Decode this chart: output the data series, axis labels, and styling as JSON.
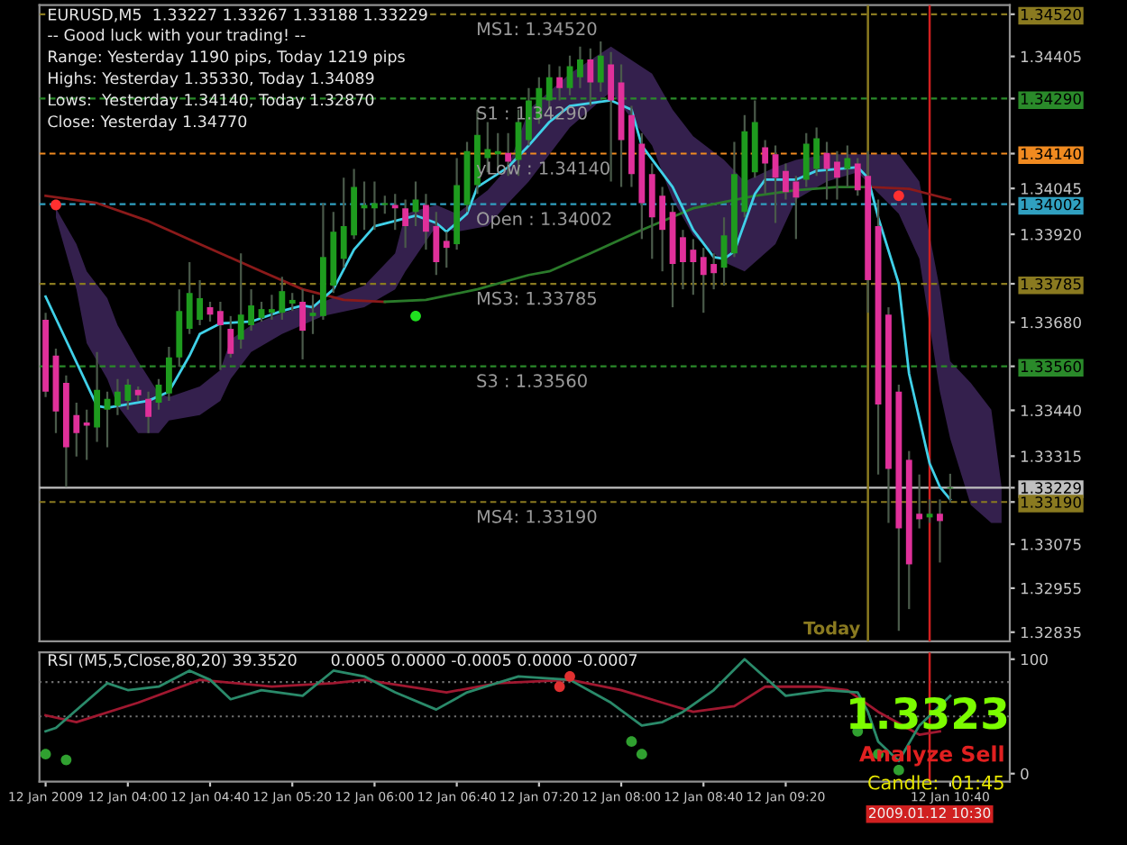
{
  "chart_data": [
    {
      "type": "candlestick",
      "title": "EURUSD,M5  1.33227 1.33267 1.33188 1.33229",
      "annotations": [
        "-- Good luck with your trading! --",
        "Range: Yesterday 1190 pips, Today 1219 pips",
        "Highs: Yesterday 1.35330, Today 1.34089",
        "Lows:  Yesterday 1.34140, Today 1.32870",
        "Close: Yesterday 1.34770"
      ],
      "x": [
        "2009-01-12T03:20",
        "2009-01-12T03:25",
        "2009-01-12T03:30",
        "2009-01-12T03:35",
        "2009-01-12T03:40",
        "2009-01-12T03:45",
        "2009-01-12T03:50",
        "2009-01-12T03:55",
        "2009-01-12T04:00",
        "2009-01-12T04:05",
        "2009-01-12T04:10",
        "2009-01-12T04:15",
        "2009-01-12T04:20",
        "2009-01-12T04:25",
        "2009-01-12T04:30",
        "2009-01-12T04:35",
        "2009-01-12T04:40",
        "2009-01-12T04:45",
        "2009-01-12T04:50",
        "2009-01-12T04:55",
        "2009-01-12T05:00",
        "2009-01-12T05:05",
        "2009-01-12T05:10",
        "2009-01-12T05:15",
        "2009-01-12T05:20",
        "2009-01-12T05:25",
        "2009-01-12T05:30",
        "2009-01-12T05:35",
        "2009-01-12T05:40",
        "2009-01-12T05:45",
        "2009-01-12T05:50",
        "2009-01-12T05:55",
        "2009-01-12T06:00",
        "2009-01-12T06:05",
        "2009-01-12T06:10",
        "2009-01-12T06:15",
        "2009-01-12T06:20",
        "2009-01-12T06:25",
        "2009-01-12T06:30",
        "2009-01-12T06:35",
        "2009-01-12T06:40",
        "2009-01-12T06:45",
        "2009-01-12T06:50",
        "2009-01-12T06:55",
        "2009-01-12T07:00",
        "2009-01-12T07:05",
        "2009-01-12T07:10",
        "2009-01-12T07:15",
        "2009-01-12T07:20",
        "2009-01-12T07:25",
        "2009-01-12T07:30",
        "2009-01-12T07:35",
        "2009-01-12T07:40",
        "2009-01-12T07:45",
        "2009-01-12T07:50",
        "2009-01-12T07:55",
        "2009-01-12T08:00",
        "2009-01-12T08:05",
        "2009-01-12T08:10",
        "2009-01-12T08:15",
        "2009-01-12T08:20",
        "2009-01-12T08:25",
        "2009-01-12T08:30",
        "2009-01-12T08:35",
        "2009-01-12T08:40",
        "2009-01-12T08:45",
        "2009-01-12T08:50",
        "2009-01-12T08:55",
        "2009-01-12T09:00",
        "2009-01-12T09:05",
        "2009-01-12T09:10",
        "2009-01-12T09:15",
        "2009-01-12T09:20",
        "2009-01-12T09:25",
        "2009-01-12T09:30",
        "2009-01-12T09:35",
        "2009-01-12T09:40",
        "2009-01-12T09:45",
        "2009-01-12T09:50",
        "2009-01-12T09:55",
        "2009-01-12T10:00",
        "2009-01-12T10:05",
        "2009-01-12T10:10",
        "2009-01-12T10:15",
        "2009-01-12T10:20",
        "2009-01-12T10:25",
        "2009-01-12T10:30",
        "2009-01-12T10:35",
        "2009-01-12T10:40"
      ],
      "ohlc": [
        [
          1.33687,
          1.33706,
          1.33476,
          1.33491
        ],
        [
          1.33589,
          1.33608,
          1.33378,
          1.33437
        ],
        [
          1.33515,
          1.33535,
          1.33231,
          1.33339
        ],
        [
          1.33427,
          1.33461,
          1.33314,
          1.33378
        ],
        [
          1.33407,
          1.33442,
          1.33305,
          1.33398
        ],
        [
          1.33393,
          1.33599,
          1.33354,
          1.33496
        ],
        [
          1.33442,
          1.33491,
          1.33339,
          1.33471
        ],
        [
          1.33452,
          1.33525,
          1.33427,
          1.33491
        ],
        [
          1.33466,
          1.33525,
          1.33442,
          1.3351
        ],
        [
          1.33496,
          1.33505,
          1.33466,
          1.33481
        ],
        [
          1.33471,
          1.33491,
          1.33378,
          1.33422
        ],
        [
          1.33461,
          1.33525,
          1.33442,
          1.3351
        ],
        [
          1.33486,
          1.33613,
          1.33466,
          1.33584
        ],
        [
          1.33584,
          1.3377,
          1.33559,
          1.33711
        ],
        [
          1.33662,
          1.33844,
          1.33648,
          1.3376
        ],
        [
          1.33687,
          1.33795,
          1.33672,
          1.33746
        ],
        [
          1.33721,
          1.33736,
          1.33682,
          1.33701
        ],
        [
          1.33711,
          1.33736,
          1.3355,
          1.33672
        ],
        [
          1.33662,
          1.33697,
          1.33584,
          1.33594
        ],
        [
          1.33633,
          1.33868,
          1.33608,
          1.33701
        ],
        [
          1.33672,
          1.3377,
          1.33657,
          1.33726
        ],
        [
          1.33692,
          1.33736,
          1.33682,
          1.33716
        ],
        [
          1.33706,
          1.33755,
          1.33687,
          1.33716
        ],
        [
          1.33706,
          1.33804,
          1.33687,
          1.33765
        ],
        [
          1.33731,
          1.3376,
          1.33711,
          1.33741
        ],
        [
          1.33736,
          1.3377,
          1.33579,
          1.33657
        ],
        [
          1.33697,
          1.33755,
          1.33648,
          1.33706
        ],
        [
          1.33697,
          1.34005,
          1.33687,
          1.33858
        ],
        [
          1.3378,
          1.33981,
          1.3376,
          1.33927
        ],
        [
          1.33853,
          1.34074,
          1.33829,
          1.33942
        ],
        [
          1.33917,
          1.34098,
          1.33907,
          1.34049
        ],
        [
          1.33991,
          1.34064,
          1.33932,
          1.34
        ],
        [
          1.33991,
          1.34064,
          1.33932,
          1.34005
        ],
        [
          1.34,
          1.34025,
          1.33976,
          1.34005
        ],
        [
          1.34,
          1.3403,
          1.33932,
          1.33991
        ],
        [
          1.33991,
          1.34015,
          1.33883,
          1.33942
        ],
        [
          1.33981,
          1.34064,
          1.33942,
          1.34015
        ],
        [
          1.34,
          1.3403,
          1.33878,
          1.33927
        ],
        [
          1.33942,
          1.33981,
          1.33809,
          1.33844
        ],
        [
          1.33902,
          1.33927,
          1.33829,
          1.33883
        ],
        [
          1.33893,
          1.34128,
          1.33878,
          1.34054
        ],
        [
          1.34,
          1.34172,
          1.33981,
          1.34147
        ],
        [
          1.34054,
          1.3426,
          1.3403,
          1.34191
        ],
        [
          1.34128,
          1.34226,
          1.34089,
          1.34152
        ],
        [
          1.34138,
          1.34196,
          1.34098,
          1.34147
        ],
        [
          1.34142,
          1.34196,
          1.34079,
          1.34118
        ],
        [
          1.34123,
          1.3426,
          1.34079,
          1.34226
        ],
        [
          1.34177,
          1.34319,
          1.34162,
          1.34285
        ],
        [
          1.34236,
          1.34348,
          1.34221,
          1.34319
        ],
        [
          1.34285,
          1.34383,
          1.3426,
          1.34348
        ],
        [
          1.34348,
          1.34378,
          1.34285,
          1.34319
        ],
        [
          1.34319,
          1.34407,
          1.34299,
          1.34378
        ],
        [
          1.34348,
          1.34432,
          1.34319,
          1.34397
        ],
        [
          1.34397,
          1.34427,
          1.3427,
          1.34334
        ],
        [
          1.34334,
          1.34446,
          1.34309,
          1.34407
        ],
        [
          1.34383,
          1.34417,
          1.34064,
          1.34285
        ],
        [
          1.34334,
          1.34383,
          1.34049,
          1.34177
        ],
        [
          1.34245,
          1.3427,
          1.34049,
          1.34084
        ],
        [
          1.34167,
          1.34196,
          1.33907,
          1.34005
        ],
        [
          1.34084,
          1.34113,
          1.33853,
          1.33966
        ],
        [
          1.34025,
          1.34049,
          1.33819,
          1.33932
        ],
        [
          1.33981,
          1.34,
          1.33721,
          1.33839
        ],
        [
          1.33912,
          1.33932,
          1.3377,
          1.33844
        ],
        [
          1.33878,
          1.33907,
          1.33755,
          1.33844
        ],
        [
          1.33858,
          1.33883,
          1.33706,
          1.33809
        ],
        [
          1.33839,
          1.33868,
          1.3377,
          1.33814
        ],
        [
          1.33829,
          1.33966,
          1.3378,
          1.33917
        ],
        [
          1.33868,
          1.34172,
          1.33858,
          1.34084
        ],
        [
          1.33981,
          1.34245,
          1.33966,
          1.34201
        ],
        [
          1.34089,
          1.34285,
          1.34074,
          1.34226
        ],
        [
          1.34157,
          1.34177,
          1.3403,
          1.34113
        ],
        [
          1.34138,
          1.34162,
          1.33951,
          1.34074
        ],
        [
          1.34093,
          1.34113,
          1.34015,
          1.34035
        ],
        [
          1.34064,
          1.34079,
          1.33907,
          1.3402
        ],
        [
          1.34069,
          1.34196,
          1.34049,
          1.34167
        ],
        [
          1.34098,
          1.34211,
          1.34079,
          1.34182
        ],
        [
          1.34142,
          1.34172,
          1.34015,
          1.34098
        ],
        [
          1.34118,
          1.34147,
          1.34015,
          1.34074
        ],
        [
          1.34098,
          1.34162,
          1.34049,
          1.34128
        ],
        [
          1.34113,
          1.34128,
          1.34025,
          1.3404
        ],
        [
          1.34079,
          1.34147,
          1.33706,
          1.33795
        ],
        [
          1.33942,
          1.34015,
          1.33265,
          1.33456
        ],
        [
          1.33701,
          1.33721,
          1.33133,
          1.3328
        ],
        [
          1.33491,
          1.3351,
          1.32839,
          1.33118
        ],
        [
          1.33305,
          1.33329,
          1.32898,
          1.3302
        ],
        [
          1.33158,
          1.33265,
          1.33118,
          1.33143
        ],
        [
          1.33148,
          1.33197,
          1.33133,
          1.33158
        ],
        [
          1.33158,
          1.33197,
          1.33025,
          1.33138
        ],
        [
          1.33227,
          1.33267,
          1.33188,
          1.33229
        ]
      ],
      "colors": [
        "#e0309a",
        "#e0309a",
        "#e0309a",
        "#e0309a",
        "#e0309a",
        "#1e9b1e",
        "#1e9b1e",
        "#1e9b1e",
        "#1e9b1e",
        "#e0309a",
        "#e0309a",
        "#1e9b1e",
        "#1e9b1e",
        "#1e9b1e",
        "#1e9b1e",
        "#1e9b1e",
        "#e0309a",
        "#e0309a",
        "#e0309a",
        "#1e9b1e",
        "#1e9b1e",
        "#1e9b1e",
        "#1e9b1e",
        "#1e9b1e",
        "#1e9b1e",
        "#e0309a",
        "#1e9b1e",
        "#1e9b1e",
        "#1e9b1e",
        "#1e9b1e",
        "#1e9b1e",
        "#1e9b1e",
        "#1e9b1e",
        "#1e9b1e",
        "#e0309a",
        "#e0309a",
        "#1e9b1e",
        "#e0309a",
        "#e0309a",
        "#e0309a",
        "#1e9b1e",
        "#1e9b1e",
        "#1e9b1e",
        "#1e9b1e",
        "#1e9b1e",
        "#e0309a",
        "#1e9b1e",
        "#1e9b1e",
        "#1e9b1e",
        "#1e9b1e",
        "#e0309a",
        "#1e9b1e",
        "#1e9b1e",
        "#e0309a",
        "#1e9b1e",
        "#e0309a",
        "#e0309a",
        "#e0309a",
        "#e0309a",
        "#e0309a",
        "#e0309a",
        "#e0309a",
        "#e0309a",
        "#e0309a",
        "#e0309a",
        "#e0309a",
        "#1e9b1e",
        "#1e9b1e",
        "#1e9b1e",
        "#1e9b1e",
        "#e0309a",
        "#e0309a",
        "#e0309a",
        "#e0309a",
        "#1e9b1e",
        "#1e9b1e",
        "#e0309a",
        "#e0309a",
        "#1e9b1e",
        "#e0309a",
        "#e0309a",
        "#e0309a",
        "#e0309a",
        "#e0309a",
        "#e0309a",
        "#e0309a",
        "#1e9b1e",
        "#e0309a",
        "#1e9b1e"
      ],
      "series": [
        {
          "type": "area",
          "color": "#34204d",
          "x": [
            "2009-01-12T03:25",
            "2009-01-12T03:35",
            "2009-01-12T03:40",
            "2009-01-12T03:50",
            "2009-01-12T03:55",
            "2009-01-12T04:05",
            "2009-01-12T04:15",
            "2009-01-12T04:20",
            "2009-01-12T04:35",
            "2009-01-12T04:45",
            "2009-01-12T04:50",
            "2009-01-12T05:00",
            "2009-01-12T05:15",
            "2009-01-12T05:35",
            "2009-01-12T05:55",
            "2009-01-12T06:10",
            "2009-01-12T06:15",
            "2009-01-12T06:30",
            "2009-01-12T06:40",
            "2009-01-12T06:55",
            "2009-01-12T07:05",
            "2009-01-12T07:15",
            "2009-01-12T07:35",
            "2009-01-12T07:55",
            "2009-01-12T08:15",
            "2009-01-12T08:25",
            "2009-01-12T08:35",
            "2009-01-12T08:50",
            "2009-01-12T09:00",
            "2009-01-12T09:15",
            "2009-01-12T09:25",
            "2009-01-12T09:40",
            "2009-01-12T09:55",
            "2009-01-12T10:15",
            "2009-01-12T10:25",
            "2009-01-12T10:35",
            "2009-01-12T10:40",
            "2009-01-12T10:50",
            "2009-01-12T11:00",
            "2009-01-12T11:05"
          ],
          "values": [
            null,
            null,
            null,
            null,
            null,
            null,
            null,
            null,
            null,
            null,
            null,
            null,
            null,
            null,
            null,
            null,
            null,
            null,
            null,
            null,
            null,
            null,
            null,
            null,
            null,
            null,
            null,
            null,
            null,
            null,
            null,
            null,
            null,
            null,
            null,
            null,
            null,
            null,
            null,
            null
          ],
          "upper": [
            1.33991,
            1.33893,
            1.33819,
            1.33746,
            1.33672,
            1.33574,
            1.33486,
            1.33476,
            1.33505,
            1.3355,
            1.33633,
            1.33672,
            1.33706,
            1.33736,
            1.3378,
            1.33868,
            1.33976,
            1.34,
            1.33976,
            1.3404,
            1.34103,
            1.3426,
            1.34358,
            1.34432,
            1.34358,
            1.3426,
            1.34187,
            1.34123,
            1.34064,
            1.34103,
            1.34123,
            1.34138,
            1.34138,
            1.34138,
            1.34064,
            1.3377,
            1.33574,
            1.33515,
            1.33442,
            1.33231
          ],
          "lower": [
            1.33966,
            1.3377,
            1.33623,
            1.33525,
            1.33452,
            1.33378,
            1.33378,
            1.33412,
            1.33427,
            1.33466,
            1.33525,
            1.33599,
            1.33648,
            1.33697,
            1.33721,
            1.3377,
            1.33819,
            1.33942,
            1.33927,
            1.33942,
            1.34005,
            1.34064,
            1.34211,
            1.34309,
            1.34162,
            1.34015,
            1.33917,
            1.33844,
            1.33819,
            1.33893,
            1.34015,
            1.34064,
            1.34089,
            1.33976,
            1.33853,
            1.33491,
            1.33363,
            1.33182,
            1.33133,
            1.33133
          ]
        },
        {
          "type": "line",
          "color": "#8b1a1a",
          "x": [
            "2009-01-12T03:20",
            "2009-01-12T03:45",
            "2009-01-12T04:10",
            "2009-01-12T04:35",
            "2009-01-12T05:05",
            "2009-01-12T05:25",
            "2009-01-12T05:45",
            "2009-01-12T06:05"
          ],
          "values": [
            1.34025,
            1.34005,
            1.33956,
            1.33893,
            1.33819,
            1.3377,
            1.33741,
            1.33736
          ]
        },
        {
          "type": "line",
          "color": "#2a7a2a",
          "x": [
            "2009-01-12T06:05",
            "2009-01-12T06:25",
            "2009-01-12T06:50",
            "2009-01-12T07:15",
            "2009-01-12T07:25",
            "2009-01-12T07:45",
            "2009-01-12T08:10",
            "2009-01-12T08:35",
            "2009-01-12T09:05",
            "2009-01-12T09:25",
            "2009-01-12T09:45",
            "2009-01-12T10:00"
          ],
          "values": [
            1.33736,
            1.33741,
            1.3377,
            1.33809,
            1.33819,
            1.33868,
            1.33932,
            1.33991,
            1.34025,
            1.3404,
            1.34049,
            1.34049
          ]
        },
        {
          "type": "line",
          "color": "#8b1a1a",
          "x": [
            "2009-01-12T10:00",
            "2009-01-12T10:20",
            "2009-01-12T10:40"
          ],
          "values": [
            1.34049,
            1.34044,
            1.34015
          ]
        },
        {
          "type": "line",
          "color": "#40d0e8",
          "x": [
            "2009-01-12T03:20",
            "2009-01-12T03:45",
            "2009-01-12T03:50",
            "2009-01-12T04:10",
            "2009-01-12T04:20",
            "2009-01-12T04:30",
            "2009-01-12T04:35",
            "2009-01-12T04:45",
            "2009-01-12T05:00",
            "2009-01-12T05:15",
            "2009-01-12T05:25",
            "2009-01-12T05:30",
            "2009-01-12T05:40",
            "2009-01-12T05:50",
            "2009-01-12T06:00",
            "2009-01-12T06:20",
            "2009-01-12T06:30",
            "2009-01-12T06:35",
            "2009-01-12T06:45",
            "2009-01-12T06:50",
            "2009-01-12T07:05",
            "2009-01-12T07:15",
            "2009-01-12T07:25",
            "2009-01-12T07:35",
            "2009-01-12T07:55",
            "2009-01-12T08:05",
            "2009-01-12T08:10",
            "2009-01-12T08:25",
            "2009-01-12T08:35",
            "2009-01-12T08:45",
            "2009-01-12T08:50",
            "2009-01-12T08:55",
            "2009-01-12T09:00",
            "2009-01-12T09:05",
            "2009-01-12T09:10",
            "2009-01-12T09:25",
            "2009-01-12T09:35",
            "2009-01-12T09:45",
            "2009-01-12T09:55",
            "2009-01-12T10:00",
            "2009-01-12T10:05",
            "2009-01-12T10:15",
            "2009-01-12T10:20",
            "2009-01-12T10:30",
            "2009-01-12T10:35",
            "2009-01-12T10:40"
          ],
          "values": [
            1.3375,
            1.33452,
            1.33447,
            1.33466,
            1.33491,
            1.33589,
            1.33648,
            1.33677,
            1.33682,
            1.33711,
            1.33726,
            1.33721,
            1.3377,
            1.33878,
            1.33942,
            1.33971,
            1.33951,
            1.33927,
            1.33976,
            1.34049,
            1.34103,
            1.34162,
            1.34226,
            1.3427,
            1.34285,
            1.3426,
            1.34162,
            1.34049,
            1.33932,
            1.33858,
            1.33853,
            1.33873,
            1.33951,
            1.3403,
            1.34069,
            1.34069,
            1.34093,
            1.34098,
            1.34103,
            1.34074,
            1.33966,
            1.33785,
            1.3354,
            1.33295,
            1.33231,
            1.33197
          ]
        },
        {
          "type": "scatter",
          "color": "#ff3030",
          "x": [
            "2009-01-12T03:25",
            "2009-01-12T10:15"
          ],
          "values": [
            1.34,
            1.34025
          ]
        },
        {
          "type": "scatter",
          "color": "#20e020",
          "x": [
            "2009-01-12T06:20"
          ],
          "values": [
            1.33697
          ]
        }
      ],
      "xlim": [
        "2009-01-12T03:17",
        "2009-01-12T11:09"
      ],
      "ylim": [
        1.3281,
        1.34545
      ],
      "yticks": [
        {
          "value": 1.3452,
          "label": "1.34520"
        },
        1.34405,
        {
          "value": 1.3429,
          "label": "1.34290"
        },
        {
          "value": 1.3414,
          "label": "1.34140"
        },
        1.34045,
        {
          "value": 1.34002,
          "label": "1.34002"
        },
        {
          "value": 1.3392,
          "label": "1.33920"
        },
        {
          "value": 1.33785,
          "label": "1.33785"
        },
        {
          "value": 1.3368,
          "label": "1.33680"
        },
        {
          "value": 1.3356,
          "label": "1.33560"
        },
        {
          "value": 1.3344,
          "label": "1.33440"
        },
        1.33315,
        {
          "value": 1.33229,
          "label": "1.33229"
        },
        {
          "value": 1.3319,
          "label": "1.33190"
        },
        1.33075,
        1.32955,
        1.32835
      ],
      "tick_labels": "y",
      "ref_lines": [
        {
          "axis": "y",
          "value": 1.3452,
          "label": "MS1: 1.34520",
          "color": "#8a7a20",
          "line_style": "dashed"
        },
        {
          "axis": "y",
          "value": 1.3429,
          "label": "S1 : 1.34290",
          "color": "#2a8a2a",
          "line_style": "dashed"
        },
        {
          "axis": "y",
          "value": 1.3414,
          "label": "yLow : 1.34140",
          "color": "#f08a20",
          "line_style": "dashed"
        },
        {
          "axis": "y",
          "value": 1.34002,
          "label": "Open : 1.34002",
          "color": "#30a0c0",
          "line_style": "dashed"
        },
        {
          "axis": "y",
          "value": 1.33785,
          "label": "MS3: 1.33785",
          "color": "#8a7a20",
          "line_style": "dashed"
        },
        {
          "axis": "y",
          "value": 1.3356,
          "label": "S3 : 1.33560",
          "color": "#2a8a2a",
          "line_style": "dashed"
        },
        {
          "axis": "y",
          "value": 1.33229,
          "color": "#c0c0c0",
          "line_style": "solid"
        },
        {
          "axis": "y",
          "value": 1.3319,
          "label": "MS4: 1.33190",
          "color": "#8a7a20",
          "line_style": "dashed"
        },
        {
          "axis": "x",
          "value": "2009-01-12T10:00",
          "label": "Today",
          "color": "#8a7a20",
          "line_style": "solid"
        },
        {
          "axis": "x",
          "value": "2009-01-12T10:30",
          "color": "#d02020",
          "line_style": "solid"
        }
      ]
    },
    {
      "type": "line",
      "annotations": [
        "RSI (M5,5,Close,80,20) 39.3520",
        "0.0005 0.0000 -0.0005 0.0000 -0.0007",
        "1.3323",
        "Analyze Sell",
        "Candle:  01:45"
      ],
      "series": [
        {
          "type": "line",
          "color": "#a01830",
          "x": [
            "2009-01-12T03:20",
            "2009-01-12T03:35",
            "2009-01-12T04:05",
            "2009-01-12T04:35",
            "2009-01-12T05:10",
            "2009-01-12T05:40",
            "2009-01-12T05:55",
            "2009-01-12T06:35",
            "2009-01-12T07:00",
            "2009-01-12T07:35",
            "2009-01-12T08:00",
            "2009-01-12T08:20",
            "2009-01-12T08:35",
            "2009-01-12T08:55",
            "2009-01-12T09:10",
            "2009-01-12T09:35",
            "2009-01-12T09:50",
            "2009-01-12T10:05",
            "2009-01-12T10:25",
            "2009-01-12T10:35"
          ],
          "values": [
            51,
            45,
            62,
            82,
            76,
            79,
            82,
            71,
            79,
            82,
            73,
            62,
            54,
            59,
            76,
            76,
            73,
            54,
            34,
            37
          ]
        },
        {
          "type": "line",
          "color": "#2a8a6a",
          "x": [
            "2009-01-12T03:20",
            "2009-01-12T03:25",
            "2009-01-12T03:50",
            "2009-01-12T04:00",
            "2009-01-12T04:15",
            "2009-01-12T04:30",
            "2009-01-12T04:40",
            "2009-01-12T04:50",
            "2009-01-12T05:05",
            "2009-01-12T05:25",
            "2009-01-12T05:40",
            "2009-01-12T05:55",
            "2009-01-12T06:10",
            "2009-01-12T06:30",
            "2009-01-12T06:45",
            "2009-01-12T07:10",
            "2009-01-12T07:35",
            "2009-01-12T07:55",
            "2009-01-12T08:10",
            "2009-01-12T08:20",
            "2009-01-12T08:30",
            "2009-01-12T08:45",
            "2009-01-12T09:00",
            "2009-01-12T09:20",
            "2009-01-12T09:40",
            "2009-01-12T09:55",
            "2009-01-12T10:00",
            "2009-01-12T10:05",
            "2009-01-12T10:15",
            "2009-01-12T10:25",
            "2009-01-12T10:40"
          ],
          "values": [
            37,
            40,
            79,
            73,
            76,
            90,
            82,
            65,
            73,
            68,
            90,
            85,
            71,
            56,
            71,
            85,
            82,
            62,
            42,
            45,
            54,
            73,
            100,
            68,
            73,
            71,
            54,
            28,
            11,
            42,
            68
          ]
        },
        {
          "type": "scatter",
          "color": "#30a030",
          "x": [
            "2009-01-12T03:20",
            "2009-01-12T03:30",
            "2009-01-12T08:05",
            "2009-01-12T08:10",
            "2009-01-12T09:55",
            "2009-01-12T10:05",
            "2009-01-12T10:15"
          ],
          "values": [
            17,
            12,
            28,
            17,
            37,
            17,
            3
          ]
        },
        {
          "type": "scatter",
          "color": "#e03030",
          "x": [
            "2009-01-12T07:30",
            "2009-01-12T07:35"
          ],
          "values": [
            76,
            85
          ]
        }
      ],
      "xlim": [
        "2009-01-12T03:17",
        "2009-01-12T11:09"
      ],
      "ylim": [
        -7,
        106
      ],
      "yticks": [
        0,
        100
      ],
      "xticks": [
        {
          "value": "2009-01-12T03:20",
          "label": "12 Jan 2009"
        },
        {
          "value": "2009-01-12T04:00",
          "label": "12 Jan 04:00"
        },
        {
          "value": "2009-01-12T04:40",
          "label": "12 Jan 04:40"
        },
        {
          "value": "2009-01-12T05:20",
          "label": "12 Jan 05:20"
        },
        {
          "value": "2009-01-12T06:00",
          "label": "12 Jan 06:00"
        },
        {
          "value": "2009-01-12T06:40",
          "label": "12 Jan 06:40"
        },
        {
          "value": "2009-01-12T07:20",
          "label": "12 Jan 07:20"
        },
        {
          "value": "2009-01-12T08:00",
          "label": "12 Jan 08:00"
        },
        {
          "value": "2009-01-12T08:40",
          "label": "12 Jan 08:40"
        },
        {
          "value": "2009-01-12T09:20",
          "label": "12 Jan 09:20"
        },
        {
          "value": "2009-01-12T10:40",
          "label": "12 Jan 10:40"
        }
      ],
      "ref_lines": [
        {
          "axis": "y",
          "value": 80,
          "color": "#707070",
          "line_style": "dotted"
        },
        {
          "axis": "y",
          "value": 50,
          "color": "#707070",
          "line_style": "dotted"
        },
        {
          "axis": "x",
          "value": "2009-01-12T10:30",
          "label": "2009.01.12 10:30",
          "color": "#d02020",
          "line_style": "solid"
        }
      ]
    }
  ]
}
